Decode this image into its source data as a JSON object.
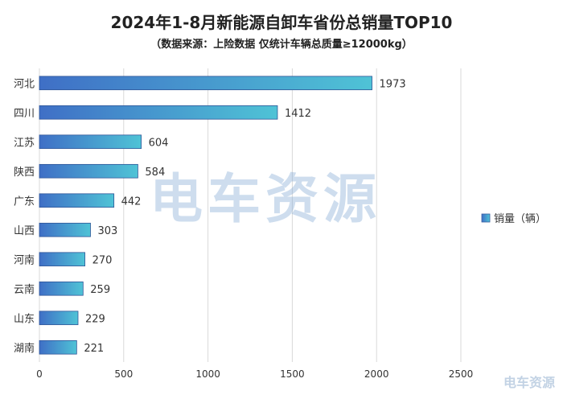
{
  "chart_data": {
    "type": "bar",
    "orientation": "horizontal",
    "title": "2024年1-8月新能源自卸车省份总销量TOP10",
    "subtitle": "（数据来源：上险数据 仅统计车辆总质量≥12000kg）",
    "categories": [
      "河北",
      "四川",
      "江苏",
      "陕西",
      "广东",
      "山西",
      "河南",
      "云南",
      "山东",
      "湖南"
    ],
    "series": [
      {
        "name": "销量（辆）",
        "values": [
          1973,
          1412,
          604,
          584,
          442,
          303,
          270,
          259,
          229,
          221
        ]
      }
    ],
    "xlim": [
      0,
      2500
    ],
    "xticks": [
      0,
      500,
      1000,
      1500,
      2000,
      2500
    ],
    "grid": true,
    "legend": "right",
    "colors": {
      "bar_start": "#3f6fc6",
      "bar_end": "#4fc3d6",
      "grid": "#d9d9d9"
    }
  },
  "watermark": "电车资源",
  "watermark_corner": "电车资源"
}
